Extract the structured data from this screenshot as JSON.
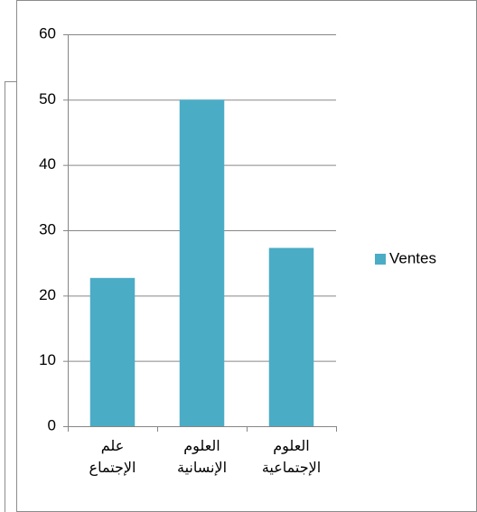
{
  "chart_data": {
    "type": "bar",
    "categories": [
      "علم الإجتماع",
      "العلوم الإنسانية",
      "العلوم الإجتماعية"
    ],
    "series": [
      {
        "name": "Ventes",
        "color": "#4bacc6",
        "values": [
          22.7,
          50,
          27.3
        ]
      }
    ],
    "ylim": [
      0,
      60
    ],
    "yticks": [
      0,
      10,
      20,
      30,
      40,
      50,
      60
    ],
    "grid": true,
    "legend": "right"
  }
}
